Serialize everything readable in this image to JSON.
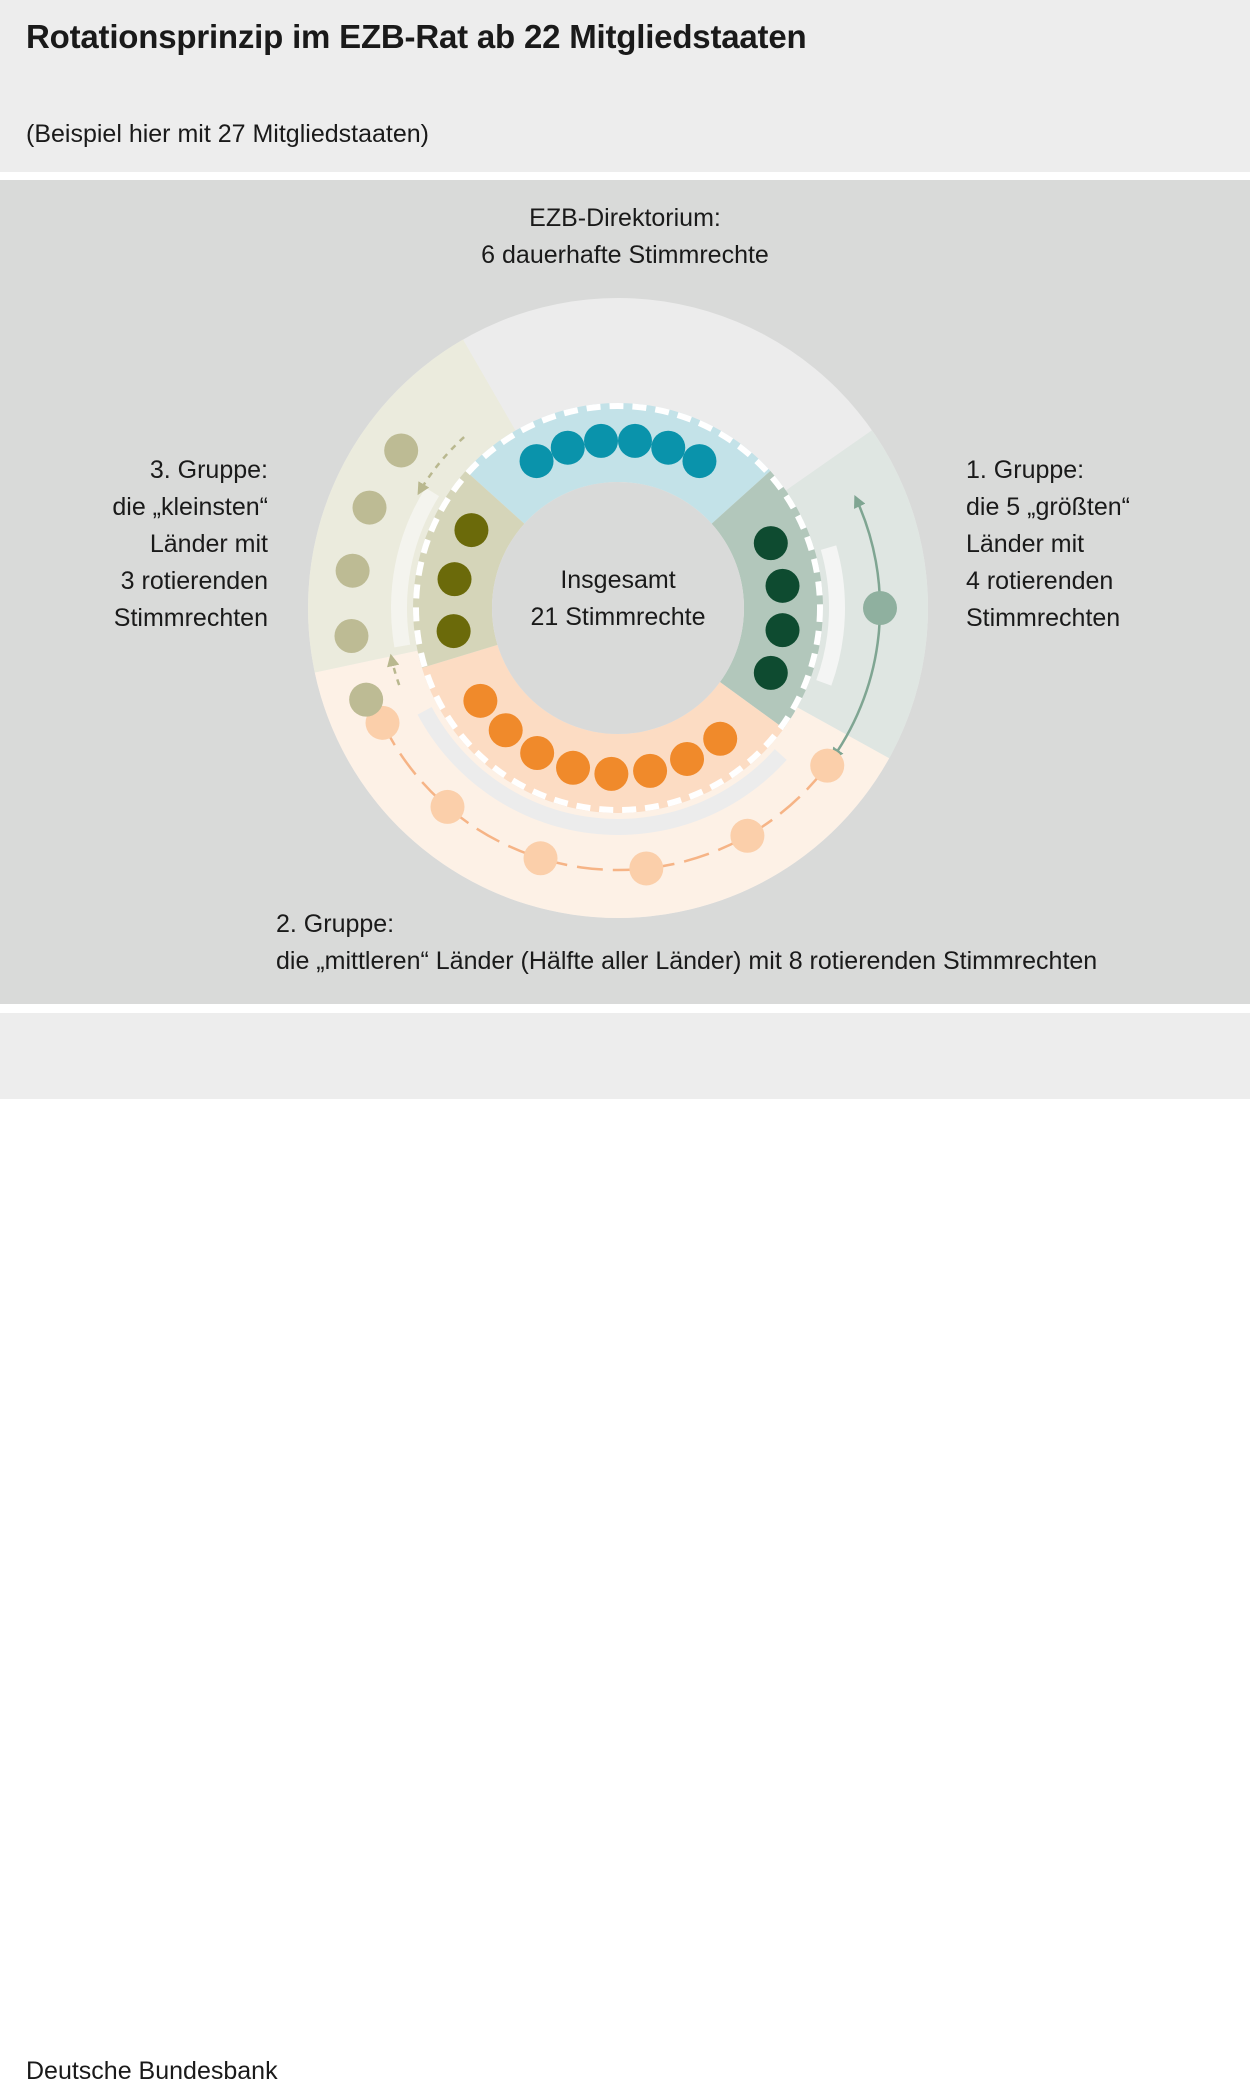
{
  "header": {
    "title": "Rotationsprinzip im EZB-Rat ab 22 Mitgliedstaaten",
    "subtitle": "(Beispiel hier mit 27 Mitgliedstaaten)"
  },
  "footer": {
    "source": "Deutsche Bundesbank"
  },
  "labels": {
    "direktorium": [
      "EZB-Direktorium:",
      "6 dauerhafte Stimmrechte"
    ],
    "center": [
      "Insgesamt",
      "21 Stimmrechte"
    ],
    "group1": [
      "1. Gruppe:",
      "die 5 „größten“",
      "Länder mit",
      "4 rotierenden",
      "Stimmrechten"
    ],
    "group2": [
      "2. Gruppe:",
      "die „mittleren“ Länder (Hälfte aller Länder) mit 8 rotierenden Stimmrechten"
    ],
    "group3": [
      "3. Gruppe:",
      "die „kleinsten“",
      "Länder mit",
      "3 rotierenden",
      "Stimmrechten"
    ]
  },
  "groups": {
    "direktorium": {
      "votes": 6,
      "members": 6
    },
    "group1": {
      "votes": 4,
      "members": 5
    },
    "group2": {
      "votes": 8,
      "members": 14
    },
    "group3": {
      "votes": 3,
      "members": 8
    }
  },
  "colors": {
    "direktorium_dot": "#0a93ab",
    "direktorium_bg": "#c3e2e8",
    "group1_dot": "#0e4b30",
    "group1_bg": "#b2c7bb",
    "group1_outer": "#dfe6e2",
    "group1_waiting": "#8fb09f",
    "group2_dot": "#f08a2b",
    "group2_bg": "#fcdcc3",
    "group2_outer": "#fdf1e6",
    "group2_waiting": "#fbcfaa",
    "group3_dot": "#6b6a0a",
    "group3_bg": "#d5d5b9",
    "group3_outer": "#ebebdd",
    "group3_waiting": "#bdbb94"
  }
}
